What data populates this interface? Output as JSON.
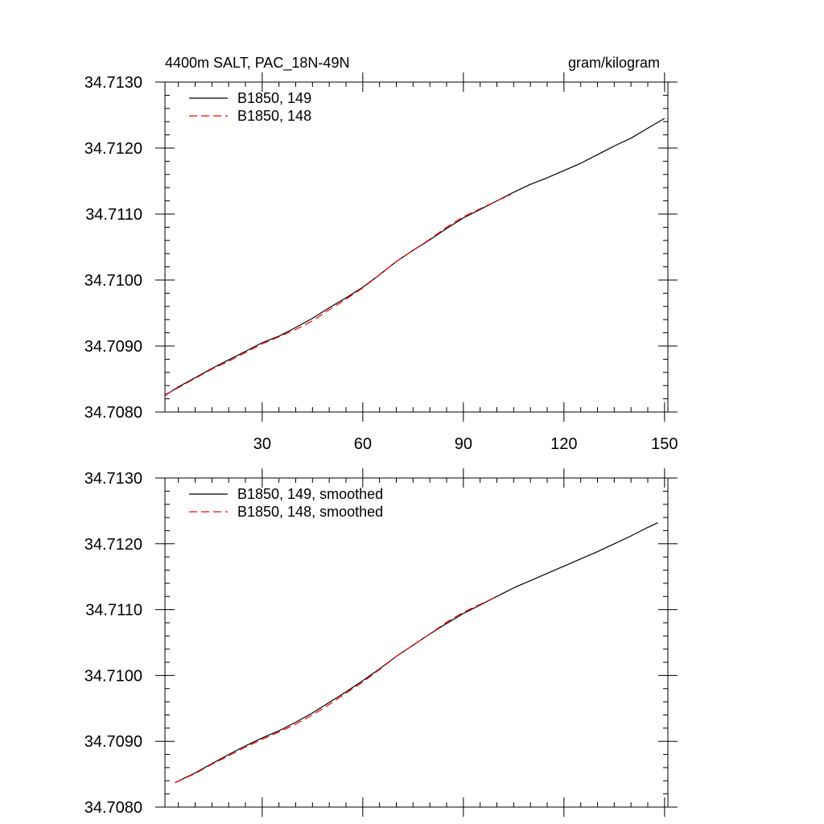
{
  "chart_data": [
    {
      "type": "line",
      "title": "4400m SALT, PAC_18N-49N",
      "units": "gram/kilogram",
      "xlim": [
        1,
        151
      ],
      "ylim": [
        34.708,
        34.713
      ],
      "xticks": [
        30,
        60,
        90,
        120,
        150
      ],
      "xtick_labels": [
        "30",
        "60",
        "90",
        "120",
        "150"
      ],
      "yticks": [
        34.708,
        34.709,
        34.71,
        34.711,
        34.712,
        34.713
      ],
      "ytick_labels": [
        "34.7080",
        "34.7090",
        "34.7100",
        "34.7110",
        "34.7120",
        "34.7130"
      ],
      "grid": false,
      "legend_position": "top-left",
      "series": [
        {
          "name": "B1850, 149",
          "color": "#000000",
          "dash": "solid",
          "x": [
            1,
            5,
            10,
            15,
            20,
            25,
            30,
            35,
            40,
            45,
            50,
            55,
            60,
            65,
            70,
            75,
            80,
            85,
            90,
            95,
            100,
            105,
            110,
            115,
            120,
            125,
            130,
            135,
            140,
            145,
            150
          ],
          "y": [
            34.70825,
            34.70838,
            34.70852,
            34.70866,
            34.70879,
            34.70892,
            34.70905,
            34.70915,
            34.70928,
            34.70942,
            34.70958,
            34.70973,
            34.70989,
            34.71008,
            34.71028,
            34.71045,
            34.71061,
            34.71078,
            34.71094,
            34.71107,
            34.7112,
            34.71133,
            34.71145,
            34.71155,
            34.71166,
            34.71177,
            34.7119,
            34.71203,
            34.71215,
            34.7123,
            34.71245
          ]
        },
        {
          "name": "B1850, 148",
          "color": "#ff0000",
          "dash": "dashed",
          "x": [
            1,
            5,
            10,
            15,
            20,
            25,
            30,
            35,
            40,
            45,
            50,
            55,
            60,
            65,
            70,
            75,
            80,
            85,
            90,
            95,
            100,
            104
          ],
          "y": [
            34.70826,
            34.70837,
            34.70851,
            34.70865,
            34.70877,
            34.7089,
            34.70903,
            34.70914,
            34.70925,
            34.70938,
            34.70955,
            34.70971,
            34.70988,
            34.71008,
            34.71028,
            34.71045,
            34.71062,
            34.7108,
            34.71096,
            34.71108,
            34.7112,
            34.71129
          ]
        }
      ]
    },
    {
      "type": "line",
      "xlim": [
        1,
        151
      ],
      "ylim": [
        34.708,
        34.713
      ],
      "xticks": [
        30,
        60,
        90,
        120,
        150
      ],
      "yticks": [
        34.708,
        34.709,
        34.71,
        34.711,
        34.712,
        34.713
      ],
      "ytick_labels": [
        "34.7080",
        "34.7090",
        "34.7100",
        "34.7110",
        "34.7120",
        "34.7130"
      ],
      "grid": false,
      "legend_position": "top-left",
      "series": [
        {
          "name": "B1850, 149, smoothed",
          "color": "#000000",
          "dash": "solid",
          "x": [
            4,
            10,
            15,
            20,
            25,
            30,
            35,
            40,
            45,
            50,
            55,
            60,
            65,
            70,
            75,
            80,
            85,
            90,
            95,
            100,
            105,
            110,
            115,
            120,
            125,
            130,
            135,
            140,
            145,
            148
          ],
          "y": [
            34.70837,
            34.70852,
            34.70866,
            34.7088,
            34.70893,
            34.70905,
            34.70916,
            34.70929,
            34.70943,
            34.70959,
            34.70975,
            34.70992,
            34.7101,
            34.71029,
            34.71046,
            34.71063,
            34.71079,
            34.71094,
            34.71107,
            34.7112,
            34.71133,
            34.71144,
            34.71155,
            34.71166,
            34.71177,
            34.71188,
            34.712,
            34.71212,
            34.71225,
            34.71232
          ]
        },
        {
          "name": "B1850, 148, smoothed",
          "color": "#ff0000",
          "dash": "dashed",
          "x": [
            4,
            10,
            15,
            20,
            25,
            30,
            35,
            40,
            45,
            50,
            55,
            60,
            65,
            70,
            75,
            80,
            85,
            90,
            95,
            100,
            101
          ],
          "y": [
            34.70837,
            34.70851,
            34.70865,
            34.70878,
            34.70891,
            34.70903,
            34.70914,
            34.70926,
            34.7094,
            34.70956,
            34.70973,
            34.7099,
            34.71009,
            34.71029,
            34.71046,
            34.71063,
            34.71081,
            34.71096,
            34.71108,
            34.7112,
            34.71122
          ]
        }
      ]
    }
  ]
}
